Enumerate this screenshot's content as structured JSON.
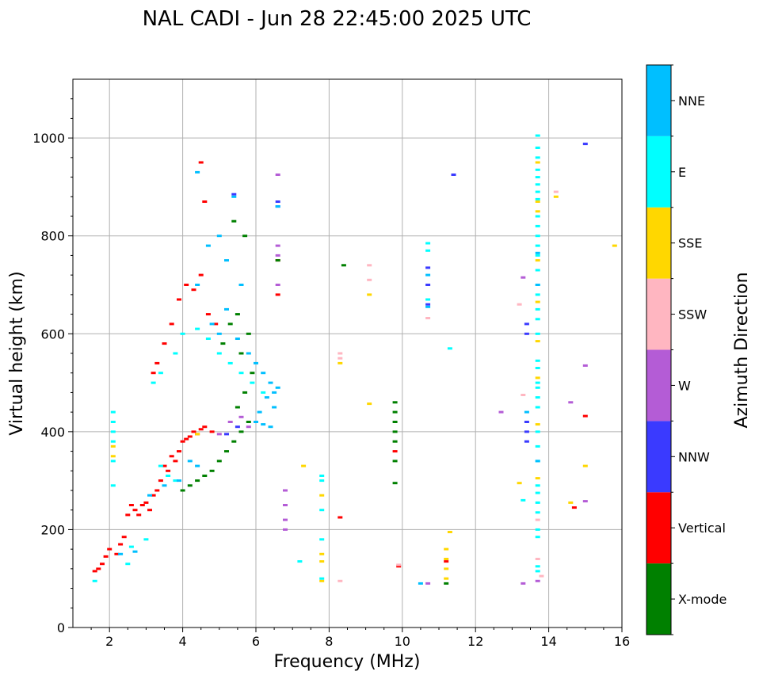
{
  "chart_data": {
    "type": "scatter",
    "title": "NAL CADI - Jun 28 22:45:00 2025 UTC",
    "xlabel": "Frequency (MHz)",
    "ylabel": "Virtual height (km)",
    "xlim": [
      1,
      16
    ],
    "ylim": [
      0,
      1120
    ],
    "xticks": [
      2,
      4,
      6,
      8,
      10,
      12,
      14,
      16
    ],
    "yticks": [
      0,
      200,
      400,
      600,
      800,
      1000
    ],
    "grid": true,
    "colorbar": {
      "label": "Azimuth Direction",
      "categories": [
        {
          "name": "X-mode",
          "color": "#008000"
        },
        {
          "name": "Vertical",
          "color": "#ff0000"
        },
        {
          "name": "NNW",
          "color": "#3a3aff"
        },
        {
          "name": "W",
          "color": "#b45cd6"
        },
        {
          "name": "SSW",
          "color": "#ffb6c1"
        },
        {
          "name": "SSE",
          "color": "#ffd700"
        },
        {
          "name": "E",
          "color": "#00ffff"
        },
        {
          "name": "NNE",
          "color": "#00bfff"
        }
      ]
    },
    "series": [
      {
        "name": "Vertical",
        "points": [
          [
            1.6,
            115
          ],
          [
            1.7,
            120
          ],
          [
            1.8,
            130
          ],
          [
            1.9,
            145
          ],
          [
            2.0,
            160
          ],
          [
            2.2,
            150
          ],
          [
            2.3,
            170
          ],
          [
            2.4,
            185
          ],
          [
            2.5,
            230
          ],
          [
            2.6,
            250
          ],
          [
            2.7,
            240
          ],
          [
            2.8,
            230
          ],
          [
            2.9,
            250
          ],
          [
            3.0,
            255
          ],
          [
            3.1,
            240
          ],
          [
            3.2,
            270
          ],
          [
            3.3,
            280
          ],
          [
            3.4,
            300
          ],
          [
            3.5,
            330
          ],
          [
            3.6,
            320
          ],
          [
            3.7,
            350
          ],
          [
            3.8,
            340
          ],
          [
            3.9,
            360
          ],
          [
            4.0,
            380
          ],
          [
            4.1,
            385
          ],
          [
            4.2,
            390
          ],
          [
            4.3,
            400
          ],
          [
            4.4,
            395
          ],
          [
            4.5,
            405
          ],
          [
            4.6,
            410
          ],
          [
            4.8,
            400
          ],
          [
            3.2,
            520
          ],
          [
            3.3,
            540
          ],
          [
            3.5,
            580
          ],
          [
            3.7,
            620
          ],
          [
            3.9,
            670
          ],
          [
            4.1,
            700
          ],
          [
            4.3,
            690
          ],
          [
            4.5,
            720
          ],
          [
            4.7,
            640
          ],
          [
            4.9,
            620
          ],
          [
            4.6,
            870
          ],
          [
            4.5,
            950
          ],
          [
            6.6,
            750
          ],
          [
            6.6,
            680
          ],
          [
            8.3,
            225
          ],
          [
            9.9,
            125
          ],
          [
            9.8,
            360
          ],
          [
            11.2,
            135
          ],
          [
            14.7,
            245
          ],
          [
            15.0,
            432
          ]
        ]
      },
      {
        "name": "X-mode",
        "points": [
          [
            4.0,
            280
          ],
          [
            4.2,
            290
          ],
          [
            4.4,
            300
          ],
          [
            4.6,
            310
          ],
          [
            4.8,
            320
          ],
          [
            5.0,
            340
          ],
          [
            5.2,
            360
          ],
          [
            5.4,
            380
          ],
          [
            5.6,
            400
          ],
          [
            5.8,
            420
          ],
          [
            5.5,
            450
          ],
          [
            5.7,
            480
          ],
          [
            5.9,
            520
          ],
          [
            5.6,
            560
          ],
          [
            5.8,
            600
          ],
          [
            5.5,
            640
          ],
          [
            5.3,
            620
          ],
          [
            5.1,
            580
          ],
          [
            5.4,
            830
          ],
          [
            5.7,
            800
          ],
          [
            6.6,
            750
          ],
          [
            8.4,
            740
          ],
          [
            9.8,
            460
          ],
          [
            9.8,
            440
          ],
          [
            9.8,
            420
          ],
          [
            9.8,
            400
          ],
          [
            9.8,
            380
          ],
          [
            9.8,
            340
          ],
          [
            9.8,
            295
          ],
          [
            11.2,
            90
          ]
        ]
      },
      {
        "name": "NNW",
        "points": [
          [
            5.4,
            885
          ],
          [
            6.6,
            860
          ],
          [
            6.6,
            870
          ],
          [
            10.7,
            735
          ],
          [
            10.7,
            700
          ],
          [
            10.7,
            660
          ],
          [
            11.4,
            925
          ],
          [
            13.4,
            620
          ],
          [
            13.4,
            600
          ],
          [
            13.4,
            420
          ],
          [
            13.4,
            400
          ],
          [
            13.4,
            380
          ],
          [
            15.0,
            988
          ],
          [
            5.2,
            395
          ],
          [
            5.5,
            410
          ]
        ]
      },
      {
        "name": "W",
        "points": [
          [
            6.6,
            925
          ],
          [
            6.6,
            780
          ],
          [
            6.6,
            760
          ],
          [
            6.6,
            700
          ],
          [
            5.0,
            395
          ],
          [
            5.3,
            420
          ],
          [
            5.6,
            430
          ],
          [
            5.8,
            410
          ],
          [
            13.3,
            715
          ],
          [
            12.7,
            440
          ],
          [
            14.6,
            460
          ],
          [
            15.0,
            535
          ],
          [
            15.0,
            258
          ],
          [
            13.3,
            90
          ],
          [
            10.7,
            90
          ],
          [
            6.8,
            280
          ],
          [
            6.8,
            250
          ],
          [
            6.8,
            220
          ],
          [
            6.8,
            200
          ],
          [
            13.7,
            95
          ]
        ]
      },
      {
        "name": "SSW",
        "points": [
          [
            9.1,
            740
          ],
          [
            9.1,
            710
          ],
          [
            10.7,
            632
          ],
          [
            8.3,
            560
          ],
          [
            8.3,
            550
          ],
          [
            13.3,
            475
          ],
          [
            13.2,
            660
          ],
          [
            14.2,
            890
          ],
          [
            13.7,
            220
          ],
          [
            13.7,
            140
          ],
          [
            9.9,
            128
          ],
          [
            8.3,
            95
          ],
          [
            13.8,
            105
          ]
        ]
      },
      {
        "name": "SSE",
        "points": [
          [
            8.3,
            540
          ],
          [
            9.1,
            680
          ],
          [
            9.1,
            457
          ],
          [
            13.7,
            950
          ],
          [
            13.7,
            870
          ],
          [
            13.7,
            850
          ],
          [
            13.7,
            750
          ],
          [
            13.7,
            665
          ],
          [
            13.7,
            585
          ],
          [
            13.7,
            510
          ],
          [
            13.7,
            415
          ],
          [
            13.7,
            305
          ],
          [
            14.2,
            880
          ],
          [
            13.2,
            295
          ],
          [
            11.2,
            160
          ],
          [
            11.2,
            140
          ],
          [
            11.2,
            120
          ],
          [
            11.2,
            100
          ],
          [
            11.3,
            195
          ],
          [
            7.8,
            150
          ],
          [
            7.8,
            135
          ],
          [
            7.8,
            270
          ],
          [
            7.8,
            95
          ],
          [
            15.0,
            330
          ],
          [
            14.6,
            255
          ],
          [
            15.8,
            780
          ],
          [
            7.3,
            330
          ],
          [
            4.4,
            395
          ],
          [
            2.1,
            370
          ],
          [
            2.1,
            350
          ]
        ]
      },
      {
        "name": "E",
        "points": [
          [
            1.6,
            95
          ],
          [
            2.1,
            440
          ],
          [
            2.1,
            420
          ],
          [
            2.1,
            400
          ],
          [
            2.1,
            380
          ],
          [
            2.1,
            340
          ],
          [
            2.1,
            290
          ],
          [
            2.6,
            165
          ],
          [
            2.5,
            130
          ],
          [
            3.0,
            180
          ],
          [
            3.4,
            330
          ],
          [
            3.6,
            310
          ],
          [
            3.8,
            300
          ],
          [
            3.2,
            500
          ],
          [
            3.4,
            520
          ],
          [
            3.8,
            560
          ],
          [
            4.0,
            600
          ],
          [
            4.4,
            610
          ],
          [
            4.7,
            590
          ],
          [
            5.0,
            560
          ],
          [
            5.3,
            540
          ],
          [
            5.6,
            520
          ],
          [
            5.9,
            500
          ],
          [
            6.2,
            480
          ],
          [
            13.7,
            1005
          ],
          [
            13.7,
            980
          ],
          [
            13.7,
            960
          ],
          [
            13.7,
            935
          ],
          [
            13.7,
            920
          ],
          [
            13.7,
            905
          ],
          [
            13.7,
            890
          ],
          [
            13.7,
            875
          ],
          [
            13.7,
            840
          ],
          [
            13.7,
            820
          ],
          [
            13.7,
            800
          ],
          [
            13.7,
            780
          ],
          [
            13.7,
            760
          ],
          [
            13.7,
            730
          ],
          [
            13.7,
            700
          ],
          [
            13.7,
            680
          ],
          [
            13.7,
            650
          ],
          [
            13.7,
            630
          ],
          [
            13.7,
            600
          ],
          [
            13.7,
            545
          ],
          [
            13.7,
            530
          ],
          [
            13.7,
            500
          ],
          [
            13.7,
            490
          ],
          [
            13.7,
            470
          ],
          [
            13.7,
            450
          ],
          [
            13.7,
            400
          ],
          [
            13.7,
            370
          ],
          [
            13.7,
            340
          ],
          [
            13.7,
            290
          ],
          [
            13.7,
            275
          ],
          [
            13.7,
            255
          ],
          [
            13.7,
            235
          ],
          [
            13.7,
            200
          ],
          [
            13.7,
            185
          ],
          [
            13.7,
            125
          ],
          [
            13.7,
            115
          ],
          [
            13.3,
            260
          ],
          [
            11.3,
            570
          ],
          [
            10.7,
            785
          ],
          [
            10.7,
            770
          ],
          [
            10.7,
            670
          ],
          [
            7.8,
            310
          ],
          [
            7.8,
            300
          ],
          [
            7.8,
            240
          ],
          [
            7.8,
            180
          ],
          [
            7.8,
            100
          ],
          [
            7.2,
            135
          ]
        ]
      },
      {
        "name": "NNE",
        "points": [
          [
            2.3,
            150
          ],
          [
            2.7,
            155
          ],
          [
            3.1,
            270
          ],
          [
            3.5,
            290
          ],
          [
            3.9,
            300
          ],
          [
            4.2,
            340
          ],
          [
            4.4,
            330
          ],
          [
            4.8,
            620
          ],
          [
            5.0,
            600
          ],
          [
            5.2,
            650
          ],
          [
            5.5,
            590
          ],
          [
            5.8,
            560
          ],
          [
            6.0,
            540
          ],
          [
            6.2,
            520
          ],
          [
            6.4,
            500
          ],
          [
            6.5,
            480
          ],
          [
            6.3,
            470
          ],
          [
            6.1,
            440
          ],
          [
            6.0,
            420
          ],
          [
            6.2,
            415
          ],
          [
            6.4,
            410
          ],
          [
            6.5,
            450
          ],
          [
            6.6,
            490
          ],
          [
            13.4,
            440
          ],
          [
            13.7,
            340
          ],
          [
            13.7,
            765
          ],
          [
            13.7,
            700
          ],
          [
            10.7,
            720
          ],
          [
            10.7,
            655
          ],
          [
            4.4,
            700
          ],
          [
            4.7,
            780
          ],
          [
            5.0,
            800
          ],
          [
            5.2,
            750
          ],
          [
            5.6,
            700
          ],
          [
            6.6,
            860
          ],
          [
            4.4,
            930
          ],
          [
            5.4,
            880
          ],
          [
            10.5,
            90
          ]
        ]
      }
    ]
  }
}
